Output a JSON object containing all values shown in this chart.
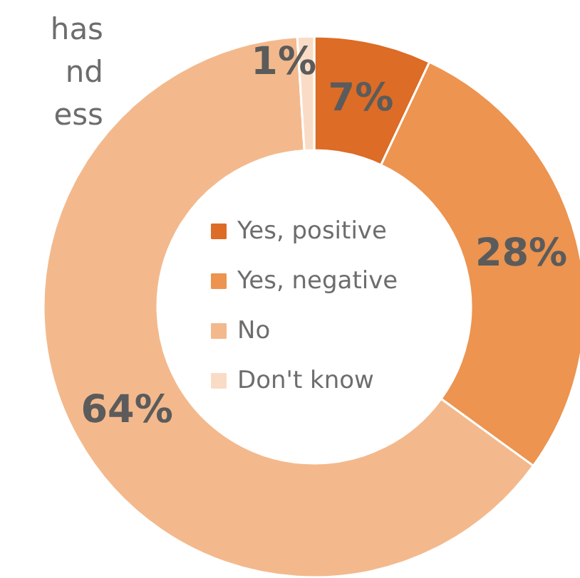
{
  "chart_data": {
    "type": "donut",
    "categories": [
      "Yes, positive",
      "Yes, negative",
      "No",
      "Don't know"
    ],
    "values": [
      7,
      28,
      64,
      1
    ],
    "colors": [
      "#dc6c26",
      "#ec9450",
      "#f3b98c",
      "#fadcc6"
    ],
    "value_labels": [
      "7%",
      "28%",
      "64%",
      "1%"
    ],
    "legend": "center",
    "annotations": [
      "has",
      "nd",
      "ess"
    ]
  }
}
